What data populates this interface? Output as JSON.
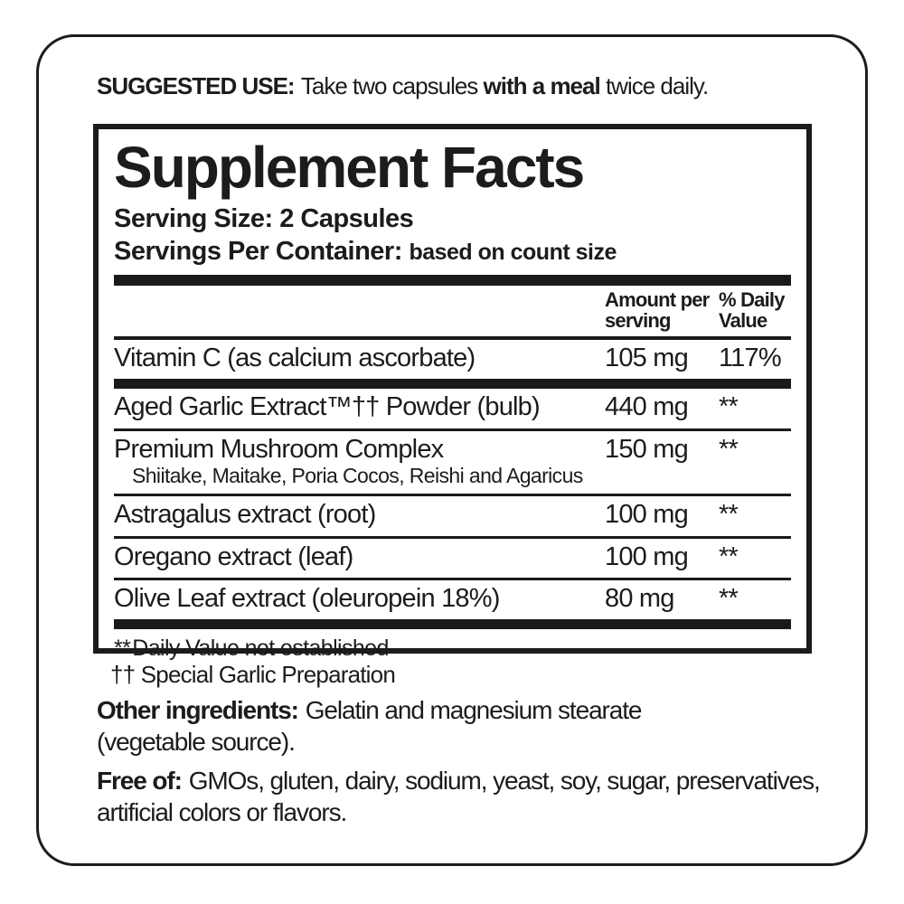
{
  "colors": {
    "ink": "#1d1b1c",
    "background": "#ffffff"
  },
  "suggested_use": {
    "label": "SUGGESTED USE:",
    "before_bold": "Take two capsules",
    "bold": "with a meal",
    "after_bold": "twice daily."
  },
  "supplement_facts": {
    "title": "Supplement Facts",
    "serving_size": {
      "label": "Serving Size:",
      "value": "2 Capsules"
    },
    "servings_per_container": {
      "label": "Servings Per Container:",
      "value": "based on count size"
    },
    "columns": {
      "amount_header": "Amount per serving",
      "daily_value_header": "% Daily Value"
    },
    "rows": [
      {
        "name": "Vitamin C (as calcium ascorbate)",
        "amount": "105 mg",
        "daily_value": "117%",
        "divider_after": "thick"
      },
      {
        "name": "Aged Garlic Extract™†† Powder (bulb)",
        "amount": "440 mg",
        "daily_value": "**",
        "divider_after": "thin"
      },
      {
        "name": "Premium Mushroom Complex",
        "sub": "Shiitake, Maitake, Poria Cocos, Reishi and Agaricus",
        "amount": "150 mg",
        "daily_value": "**",
        "divider_after": "thin"
      },
      {
        "name": "Astragalus extract (root)",
        "amount": "100 mg",
        "daily_value": "**",
        "divider_after": "thin"
      },
      {
        "name": "Oregano extract (leaf)",
        "amount": "100 mg",
        "daily_value": "**",
        "divider_after": "thin"
      },
      {
        "name": "Olive Leaf extract (oleuropein 18%)",
        "amount": "80 mg",
        "daily_value": "**",
        "divider_after": "thick"
      }
    ],
    "footnote": {
      "symbol": "**",
      "text": "Daily Value not established"
    }
  },
  "garlic_note": "†† Special Garlic Preparation",
  "other_ingredients": {
    "label": "Other ingredients:",
    "text": "Gelatin and magnesium stearate (vegetable source)."
  },
  "free_of": {
    "label": "Free of:",
    "text": "GMOs, gluten, dairy, sodium, yeast, soy, sugar, preservatives, artificial colors or flavors."
  }
}
